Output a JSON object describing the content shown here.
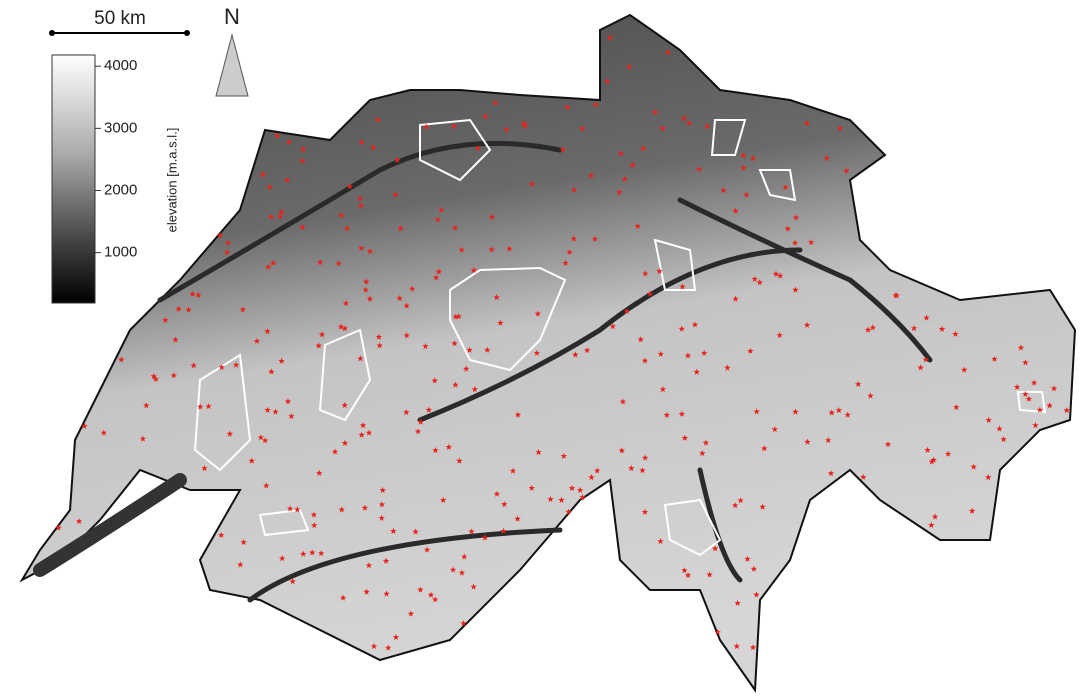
{
  "scale_bar": {
    "label": "50 km"
  },
  "north_arrow": {
    "label": "N"
  },
  "legend": {
    "title": "elevation [m.a.s.l.]",
    "limits": [
      190,
      4180
    ],
    "ticks": [
      1000,
      2000,
      3000,
      4000
    ]
  }
}
